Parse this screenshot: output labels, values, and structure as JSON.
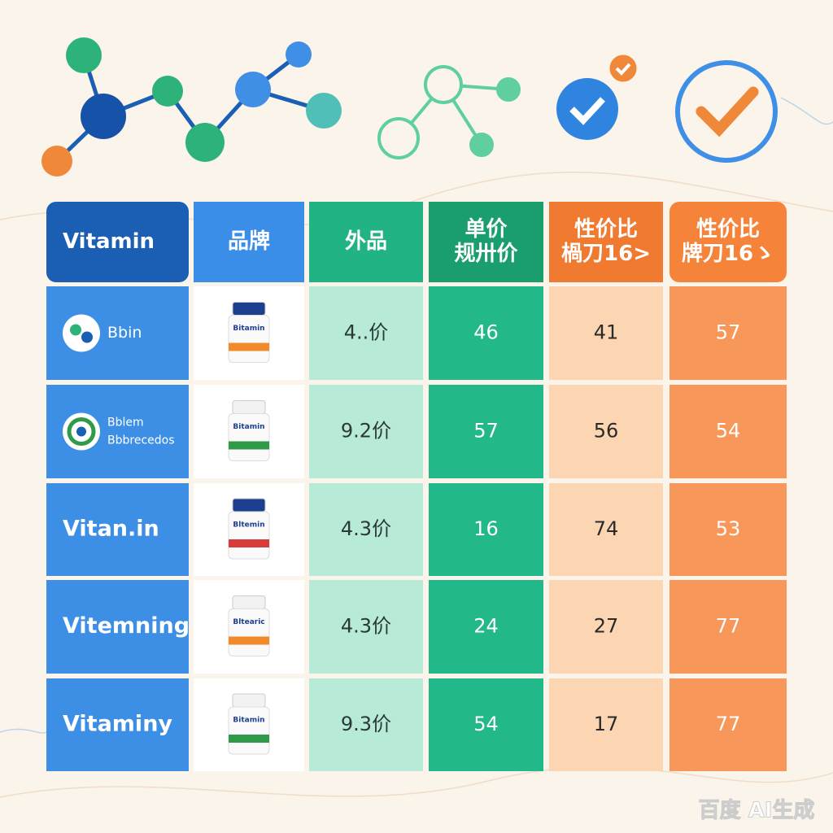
{
  "table": {
    "header": [
      [
        "Vitamin"
      ],
      [
        "品牌"
      ],
      [
        "外品"
      ],
      [
        "单价",
        "规卅价"
      ],
      [
        "性价比",
        "楇刀16>"
      ],
      [
        "性价比",
        "牌刀16ゝ"
      ]
    ],
    "rows": [
      {
        "brand": [
          "Bbin"
        ],
        "icon": "leaf",
        "bottle": "Bitamin",
        "cap": "#1d3f8f",
        "stripe": "#f08a2a",
        "cells": [
          "4..价",
          "46",
          "41",
          "57"
        ]
      },
      {
        "brand": [
          "Bblem",
          "Bbbrecedos"
        ],
        "icon": "ring",
        "bottle": "Bitamin",
        "cap": "#f2f2f2",
        "stripe": "#2f9a48",
        "cells": [
          "9.2价",
          "57",
          "56",
          "54"
        ]
      },
      {
        "brand": [
          "Vitan.in"
        ],
        "icon": null,
        "bottle": "Bltemin",
        "cap": "#1d3f8f",
        "stripe": "#d93b3b",
        "cells": [
          "4.3价",
          "16",
          "74",
          "53"
        ]
      },
      {
        "brand": [
          "Vitemning"
        ],
        "icon": null,
        "bottle": "Bltearic",
        "cap": "#f2f2f2",
        "stripe": "#f08a2a",
        "cells": [
          "4.3价",
          "24",
          "27",
          "77"
        ]
      },
      {
        "brand": [
          "Vitaminy"
        ],
        "icon": null,
        "bottle": "Bitamin",
        "cap": "#f2f2f2",
        "stripe": "#2f9a48",
        "cells": [
          "9.3价",
          "54",
          "17",
          "77"
        ]
      }
    ]
  },
  "watermark": "百度 AI生成"
}
